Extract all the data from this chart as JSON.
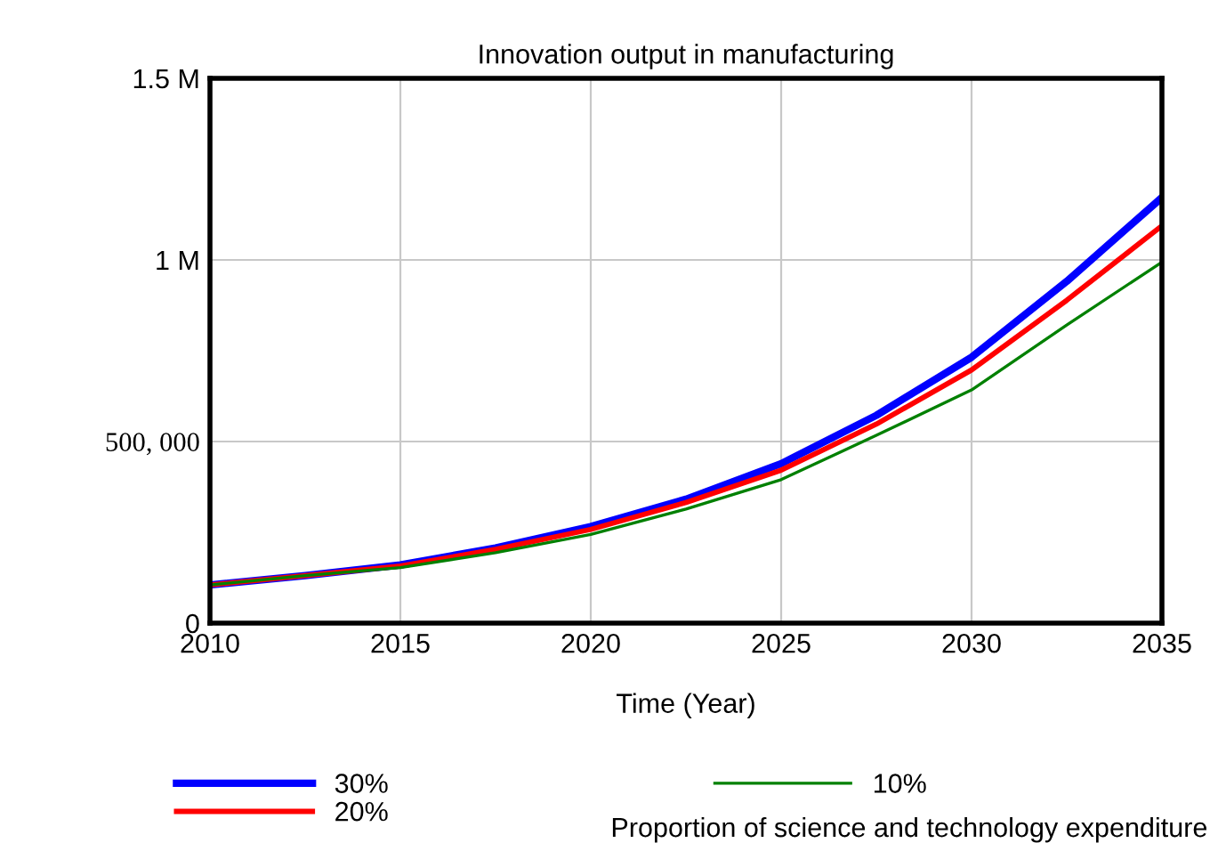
{
  "chart_data": {
    "type": "line",
    "title": "Innovation output in manufacturing",
    "xlabel": "Time (Year)",
    "x": [
      2010,
      2012.5,
      2015,
      2017.5,
      2020,
      2022.5,
      2025,
      2027.5,
      2030,
      2032.5,
      2035
    ],
    "series": [
      {
        "name": "30%",
        "color": "#0000ff",
        "values": [
          105000,
          131000,
          160000,
          207000,
          266000,
          341000,
          439000,
          572000,
          732000,
          941000,
          1172000
        ]
      },
      {
        "name": "20%",
        "color": "#ff0000",
        "values": [
          105000,
          131000,
          157000,
          203000,
          258000,
          332000,
          421000,
          548000,
          697000,
          889000,
          1094000
        ]
      },
      {
        "name": "10%",
        "color": "#008000",
        "values": [
          105000,
          131000,
          153000,
          194000,
          244000,
          314000,
          395000,
          517000,
          642000,
          821000,
          994000
        ]
      }
    ],
    "legend_title": "Proportion of science and technology expenditure",
    "xlim": [
      2010,
      2035
    ],
    "xticks": [
      2010,
      2015,
      2020,
      2025,
      2030,
      2035
    ],
    "ylim": [
      0,
      1500000
    ],
    "yticks": [
      {
        "value": 0,
        "label": "0"
      },
      {
        "value": 500000,
        "label": "500, 000"
      },
      {
        "value": 1000000,
        "label": "1 M"
      },
      {
        "value": 1500000,
        "label": "1.5 M"
      }
    ],
    "grid": true,
    "legend": "bottom",
    "marker": "none",
    "line_style": "solid"
  }
}
